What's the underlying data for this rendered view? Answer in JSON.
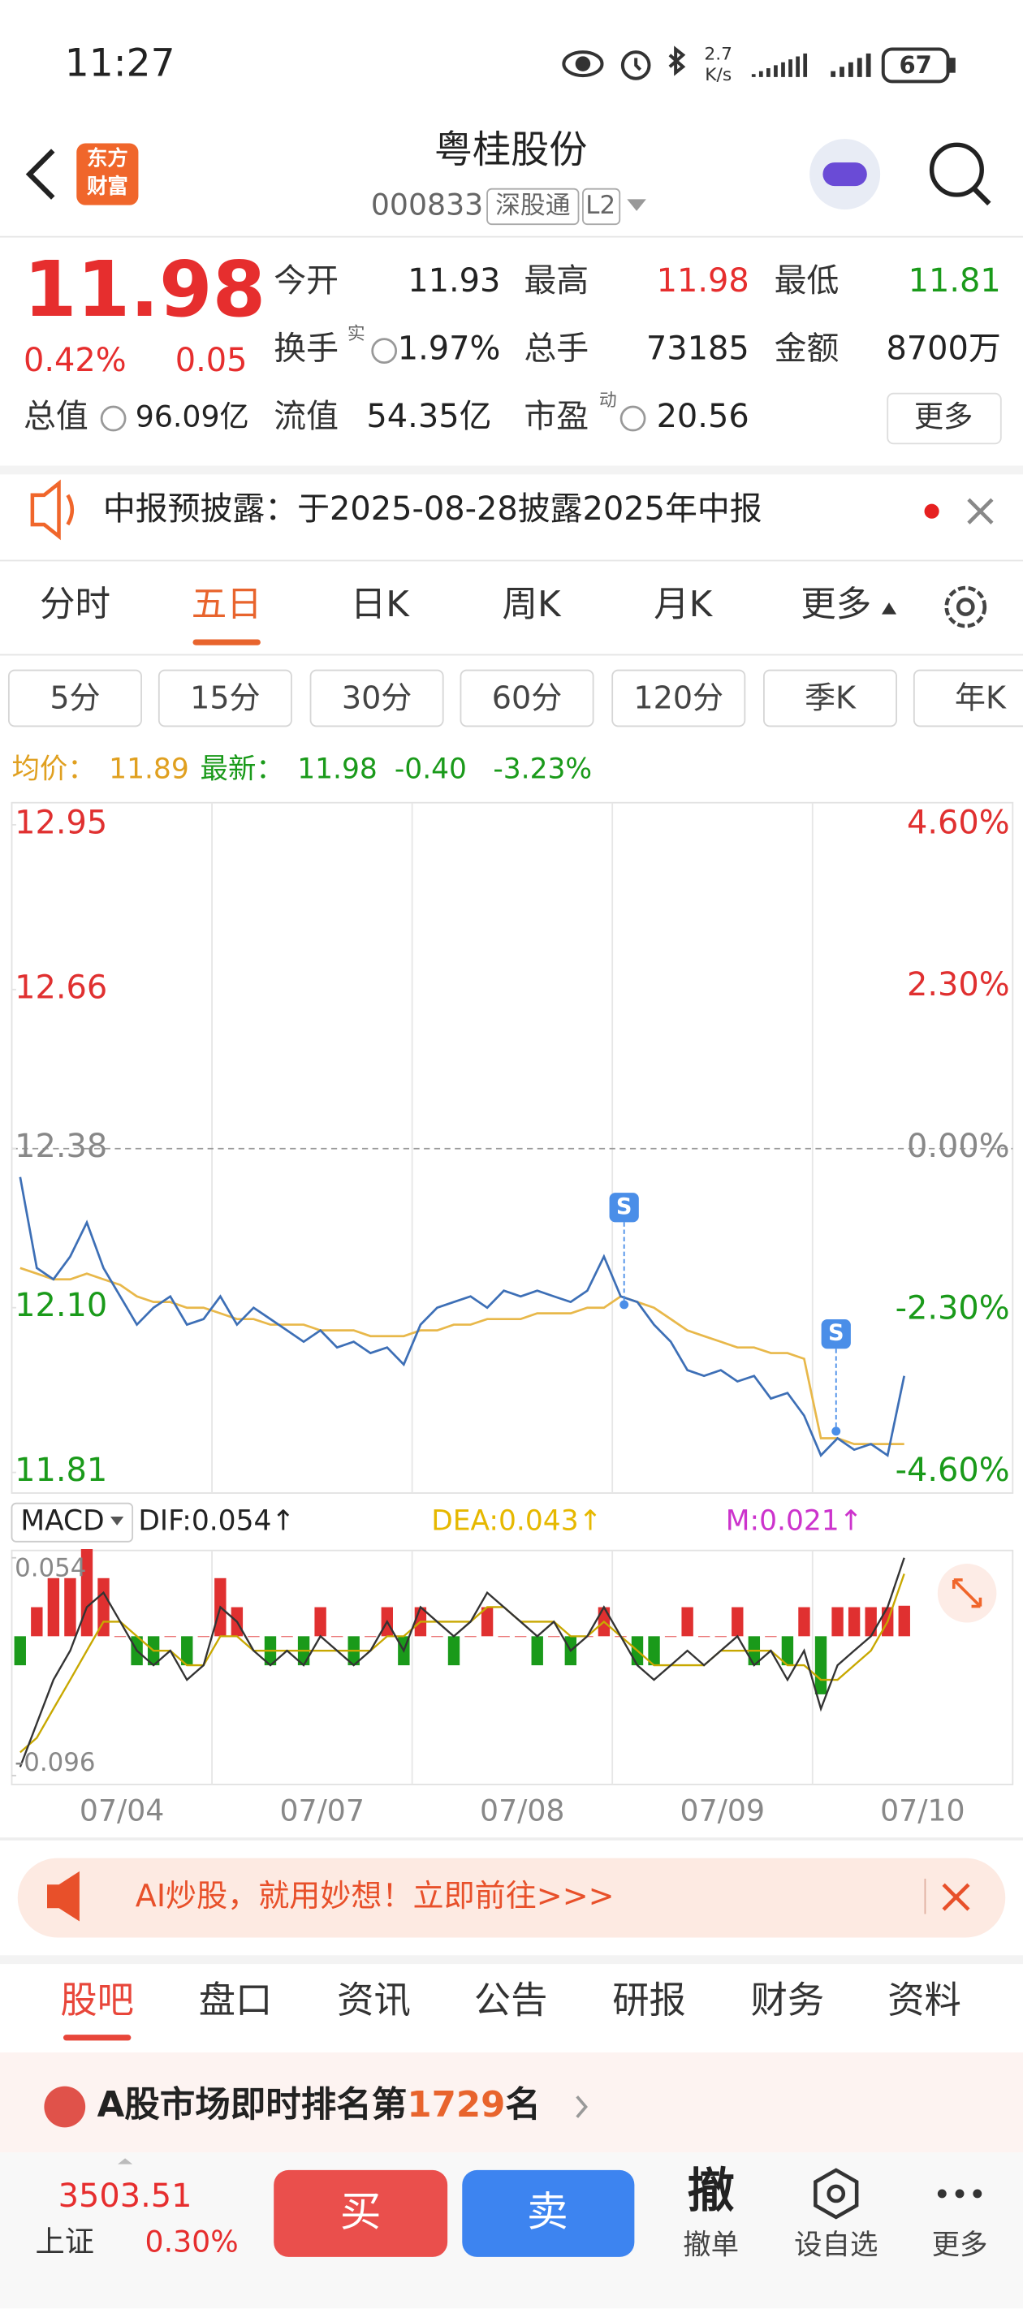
{
  "status_bar": {
    "time": "11:27",
    "net_speed": "2.7",
    "net_unit": "K/s",
    "battery": "67"
  },
  "header": {
    "logo": [
      "东方",
      "财富"
    ],
    "title": "粤桂股份",
    "code": "000833",
    "tag": "深股通",
    "level": "L2"
  },
  "quote": {
    "price": "11.98",
    "change_pct": "0.42%",
    "change": "0.05",
    "fields": [
      {
        "label": "今开",
        "value": "11.93"
      },
      {
        "label": "最高",
        "value": "11.98"
      },
      {
        "label": "最低",
        "value": "11.81"
      },
      {
        "label": "换手",
        "value": "1.97%"
      },
      {
        "label": "总手",
        "value": "73185"
      },
      {
        "label": "金额",
        "value": "8700万"
      },
      {
        "label": "总值",
        "value": "96.09亿"
      },
      {
        "label": "流值",
        "value": "54.35亿"
      },
      {
        "label": "市盈",
        "value": "20.56"
      }
    ],
    "turnover_sup": "实",
    "pe_sup": "动",
    "more": "更多"
  },
  "notice": "中报预披露：于2025-08-28披露2025年中报",
  "period_tabs": {
    "items": [
      "分时",
      "五日",
      "日K",
      "周K",
      "月K",
      "更多"
    ],
    "active": 1
  },
  "interval_tabs": [
    "5分",
    "15分",
    "30分",
    "60分",
    "120分",
    "季K",
    "年K"
  ],
  "summary": {
    "avg_label": "均价：",
    "avg": "11.89",
    "latest_label": "最新：",
    "latest": "11.98",
    "change": "-0.40",
    "change_pct": "-3.23%"
  },
  "chart_data": [
    {
      "type": "line",
      "days": [
        "07/04",
        "07/07",
        "07/08",
        "07/09",
        "07/10"
      ],
      "ylim": [
        11.81,
        12.95
      ],
      "yticks": [
        12.95,
        12.66,
        12.38,
        {
          "value": 12.1,
          "label": "12.10"
        },
        11.81
      ],
      "y2lim": [
        -4.6,
        4.6
      ],
      "y2ticks": [
        {
          "value": 4.6,
          "label": "4.60%"
        },
        {
          "value": 2.3,
          "label": "2.30%"
        },
        {
          "value": 0,
          "label": "0.00%"
        },
        {
          "value": -2.3,
          "label": "-2.30%"
        },
        {
          "value": -4.6,
          "label": "-4.60%"
        }
      ],
      "up_color": "#e03030",
      "down_color": "#1a9a1a",
      "grid": true,
      "signals": [
        "S",
        "S"
      ],
      "series": [
        {
          "color": "#3d6fb6",
          "values": [
            12.33,
            12.17,
            12.15,
            12.19,
            12.25,
            12.17,
            12.12,
            12.07,
            12.1,
            12.12,
            12.07,
            12.08,
            12.12,
            12.07,
            12.1,
            12.08,
            12.06,
            12.04,
            12.06,
            12.03,
            12.04,
            12.02,
            12.03,
            12.0,
            12.07,
            12.1,
            12.11,
            12.12,
            12.1,
            12.13,
            12.12,
            12.13,
            12.12,
            12.11,
            12.13,
            12.19,
            12.12,
            12.11,
            12.07,
            12.04,
            11.99,
            11.98,
            11.99,
            11.97,
            11.98,
            11.94,
            11.95,
            11.91,
            11.84,
            11.87,
            11.85,
            11.86,
            11.84,
            11.98,
            null,
            null,
            null,
            null,
            null,
            null
          ]
        },
        {
          "color": "#e8b84a",
          "values": [
            12.17,
            12.16,
            12.15,
            12.15,
            12.16,
            12.15,
            12.14,
            12.12,
            12.11,
            12.11,
            12.1,
            12.1,
            12.09,
            12.08,
            12.08,
            12.07,
            12.07,
            12.07,
            12.06,
            12.06,
            12.06,
            12.05,
            12.05,
            12.05,
            12.06,
            12.06,
            12.07,
            12.07,
            12.08,
            12.08,
            12.08,
            12.09,
            12.09,
            12.09,
            12.1,
            12.1,
            12.12,
            12.11,
            12.1,
            12.08,
            12.06,
            12.05,
            12.04,
            12.03,
            12.03,
            12.02,
            12.02,
            12.01,
            11.87,
            11.87,
            11.86,
            11.86,
            11.86,
            11.86,
            null,
            null,
            null,
            null,
            null,
            null
          ]
        }
      ]
    },
    {
      "type": "macd",
      "label": "MACD",
      "legend": [
        "DIF:0.054↑",
        "DEA:0.043↑",
        "M:0.021↑"
      ],
      "legend_colors": [
        "#222222",
        "#e6b800",
        "#cc33cc"
      ],
      "ylim": [
        -0.096,
        0.054
      ],
      "yticks": [
        0.054,
        -0.096
      ],
      "up_color": "#e03030",
      "down_color": "#1a9a1a",
      "series": [
        {
          "color": "#333333",
          "values": [
            -0.09,
            -0.06,
            -0.03,
            -0.01,
            0.02,
            0.03,
            0.01,
            -0.01,
            -0.02,
            -0.01,
            -0.03,
            -0.02,
            0.02,
            0.01,
            -0.01,
            -0.02,
            -0.01,
            -0.02,
            0.0,
            -0.01,
            -0.02,
            -0.01,
            0.01,
            -0.01,
            0.02,
            0.01,
            0.0,
            0.01,
            0.03,
            0.02,
            0.01,
            0.0,
            0.01,
            -0.01,
            0.0,
            0.02,
            0.0,
            -0.02,
            -0.03,
            -0.02,
            -0.01,
            -0.02,
            -0.01,
            0.0,
            -0.02,
            -0.01,
            -0.03,
            -0.01,
            -0.05,
            -0.02,
            -0.01,
            0.0,
            0.02,
            0.054,
            null,
            null,
            null,
            null,
            null,
            null
          ]
        },
        {
          "color": "#c8a800",
          "values": [
            -0.08,
            -0.07,
            -0.05,
            -0.03,
            -0.01,
            0.01,
            0.01,
            0.0,
            -0.01,
            -0.01,
            -0.02,
            -0.02,
            0.0,
            0.0,
            -0.01,
            -0.01,
            -0.01,
            -0.01,
            -0.01,
            -0.01,
            -0.01,
            -0.01,
            0.0,
            0.0,
            0.01,
            0.01,
            0.01,
            0.01,
            0.02,
            0.02,
            0.01,
            0.01,
            0.01,
            0.0,
            0.0,
            0.01,
            0.0,
            -0.01,
            -0.02,
            -0.02,
            -0.02,
            -0.02,
            -0.01,
            -0.01,
            -0.01,
            -0.01,
            -0.02,
            -0.02,
            -0.03,
            -0.03,
            -0.02,
            -0.01,
            0.01,
            0.043,
            null,
            null,
            null,
            null,
            null,
            null
          ]
        }
      ],
      "histogram": [
        -0.02,
        0.02,
        0.04,
        0.04,
        0.06,
        0.04,
        0,
        -0.02,
        -0.02,
        0,
        -0.02,
        0,
        0.04,
        0.02,
        0,
        -0.02,
        0,
        -0.02,
        0.02,
        0,
        -0.02,
        0,
        0.02,
        -0.02,
        0.02,
        0,
        -0.02,
        0,
        0.02,
        0,
        0,
        -0.02,
        0,
        -0.02,
        0,
        0.02,
        0,
        -0.02,
        -0.02,
        0,
        0.02,
        0,
        0,
        0.02,
        -0.02,
        0,
        -0.02,
        0.02,
        -0.04,
        0.02,
        0.02,
        0.02,
        0.02,
        0.021,
        null,
        null,
        null,
        null,
        null,
        null
      ]
    }
  ],
  "banner": "AI炒股，就用妙想！立即前往>>>",
  "section_tabs": {
    "items": [
      "股吧",
      "盘口",
      "资讯",
      "公告",
      "研报",
      "财务",
      "资料"
    ],
    "active": 0
  },
  "rank": {
    "prefix": "A股市场即时排名第",
    "number": "1729",
    "suffix": "名"
  },
  "footer": {
    "index_value": "3503.51",
    "index_name": "上证",
    "index_pct": "0.30%",
    "buy": "买",
    "sell": "卖",
    "cancel_icon": "撤",
    "cancel": "撤单",
    "watch": "设自选",
    "more": "更多"
  }
}
